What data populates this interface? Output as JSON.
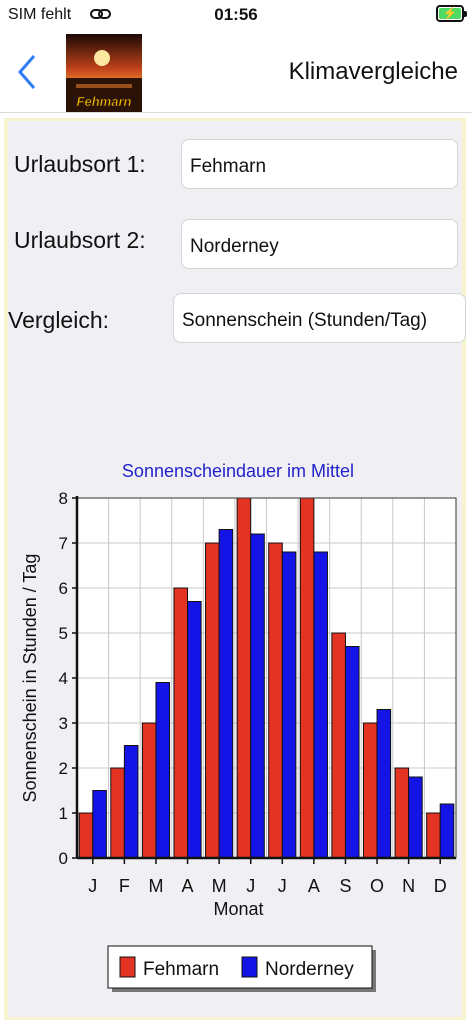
{
  "status": {
    "carrier": "SIM fehlt",
    "time": "01:56"
  },
  "nav": {
    "title": "Klimavergleiche",
    "logo_text": "Fehmarn"
  },
  "form": {
    "location1_label": "Urlaubsort 1:",
    "location1_value": "Fehmarn",
    "location2_label": "Urlaubsort 2:",
    "location2_value": "Norderney",
    "compare_label": "Vergleich:",
    "compare_value": "Sonnenschein (Stunden/Tag)"
  },
  "chart_data": {
    "type": "bar",
    "title": "Sonnenscheindauer im Mittel",
    "xlabel": "Monat",
    "ylabel": "Sonnenschein in Stunden / Tag",
    "ylim": [
      0,
      8
    ],
    "yticks": [
      0,
      1,
      2,
      3,
      4,
      5,
      6,
      7,
      8
    ],
    "categories": [
      "J",
      "F",
      "M",
      "A",
      "M",
      "J",
      "J",
      "A",
      "S",
      "O",
      "N",
      "D"
    ],
    "series": [
      {
        "name": "Fehmarn",
        "color": "#e33322",
        "values": [
          1,
          2,
          3,
          6,
          7,
          8,
          7,
          8,
          5,
          3,
          2,
          1
        ]
      },
      {
        "name": "Norderney",
        "color": "#1414e6",
        "values": [
          1.5,
          2.5,
          3.9,
          5.7,
          7.3,
          7.2,
          6.8,
          6.8,
          4.7,
          3.3,
          1.8,
          1.2
        ]
      }
    ],
    "grid": true,
    "legend": "bottom"
  }
}
